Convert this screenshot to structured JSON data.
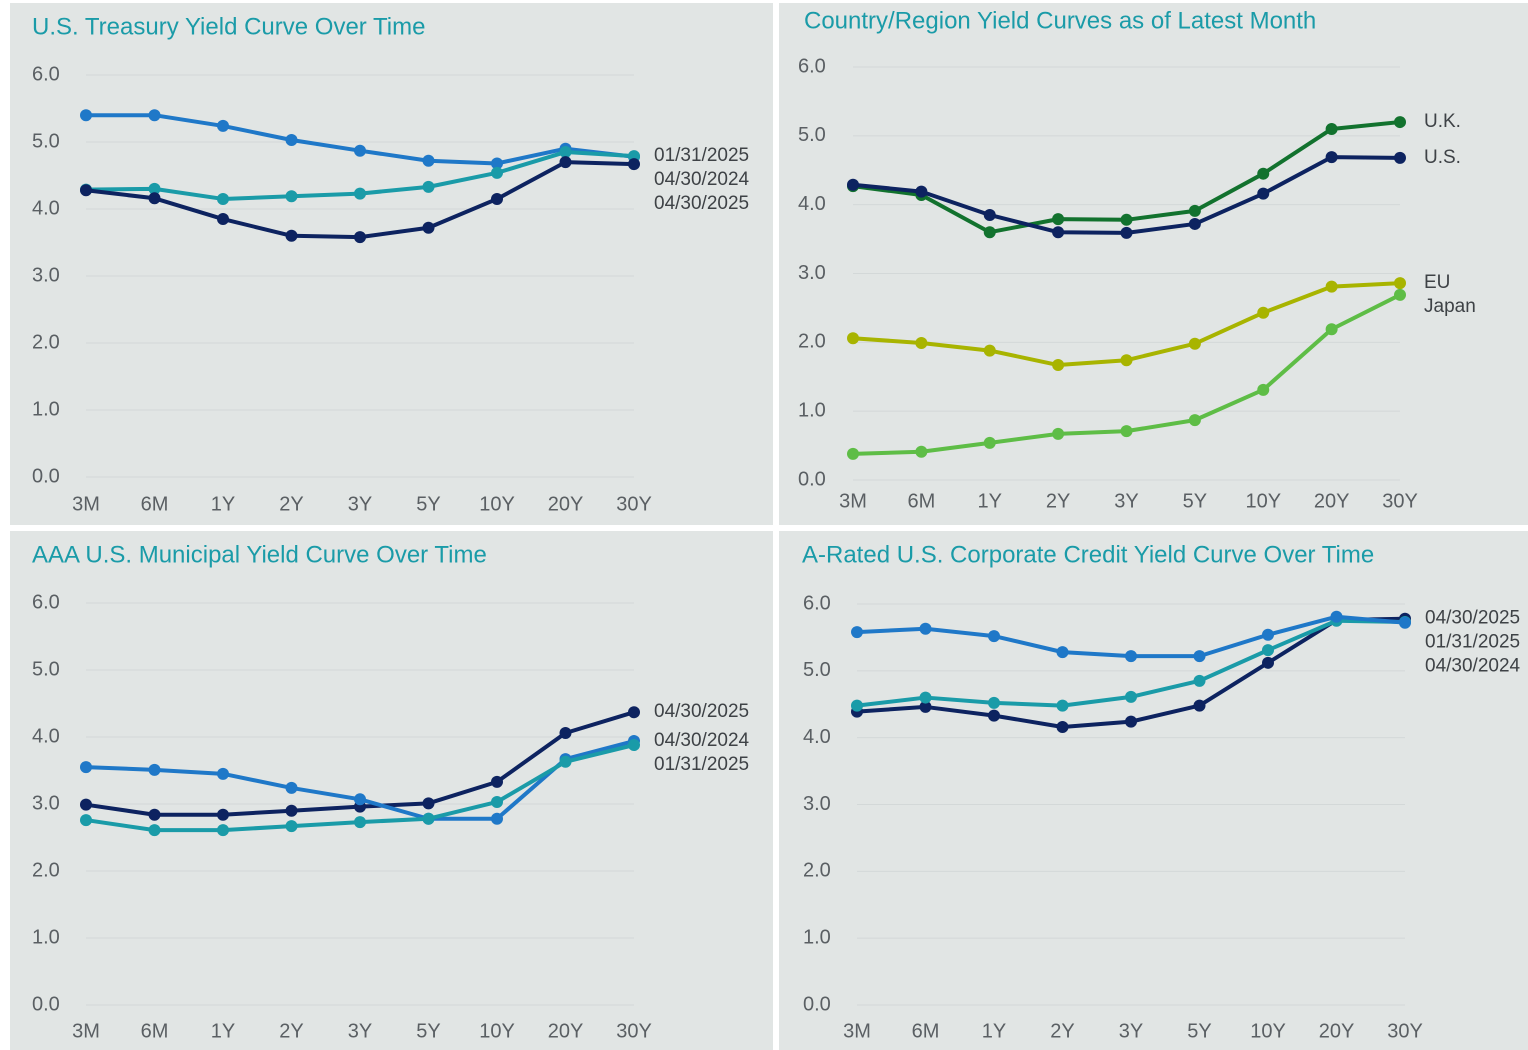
{
  "chart_data": [
    {
      "type": "line",
      "title": "U.S. Treasury Yield Curve Over Time",
      "categories": [
        "3M",
        "6M",
        "1Y",
        "2Y",
        "3Y",
        "5Y",
        "10Y",
        "20Y",
        "30Y"
      ],
      "ylim": [
        0,
        6
      ],
      "yticks": [
        {
          "value": 0,
          "label": "0.0"
        },
        {
          "value": 1,
          "label": "1.0"
        },
        {
          "value": 2,
          "label": "2.0"
        },
        {
          "value": 3,
          "label": "3.0"
        },
        {
          "value": 4,
          "label": "4.0"
        },
        {
          "value": 5,
          "label": "5.0"
        },
        {
          "value": 6,
          "label": "6.0"
        }
      ],
      "grid": true,
      "series": [
        {
          "name": "04/30/2024",
          "color": "#1f78c8",
          "values": [
            5.4,
            5.4,
            5.24,
            5.03,
            4.87,
            4.72,
            4.68,
            4.9,
            4.78
          ]
        },
        {
          "name": "01/31/2025",
          "color": "#1a9ba8",
          "values": [
            4.29,
            4.3,
            4.15,
            4.19,
            4.23,
            4.33,
            4.54,
            4.85,
            4.79
          ]
        },
        {
          "name": "04/30/2025",
          "color": "#0d2360",
          "values": [
            4.28,
            4.16,
            3.85,
            3.6,
            3.58,
            3.72,
            4.15,
            4.7,
            4.67
          ]
        }
      ]
    },
    {
      "type": "line",
      "title": "Country/Region Yield Curves as of Latest Month",
      "categories": [
        "3M",
        "6M",
        "1Y",
        "2Y",
        "3Y",
        "5Y",
        "10Y",
        "20Y",
        "30Y"
      ],
      "ylim": [
        0,
        6
      ],
      "yticks": [
        {
          "value": 0,
          "label": "0.0"
        },
        {
          "value": 1,
          "label": "1.0"
        },
        {
          "value": 2,
          "label": "2.0"
        },
        {
          "value": 3,
          "label": "3.0"
        },
        {
          "value": 4,
          "label": "4.0"
        },
        {
          "value": 5,
          "label": "5.0"
        },
        {
          "value": 6,
          "label": "6.0"
        }
      ],
      "grid": true,
      "series": [
        {
          "name": "U.K.",
          "color": "#12722e",
          "values": [
            4.27,
            4.14,
            3.6,
            3.79,
            3.78,
            3.91,
            4.45,
            5.1,
            5.2
          ]
        },
        {
          "name": "U.S.",
          "color": "#0d2360",
          "values": [
            4.29,
            4.19,
            3.85,
            3.6,
            3.59,
            3.72,
            4.16,
            4.69,
            4.68
          ]
        },
        {
          "name": "EU",
          "color": "#a8b400",
          "values": [
            2.06,
            1.99,
            1.88,
            1.67,
            1.74,
            1.98,
            2.43,
            2.81,
            2.86
          ]
        },
        {
          "name": "Japan",
          "color": "#5ebd46",
          "values": [
            0.38,
            0.41,
            0.54,
            0.67,
            0.71,
            0.87,
            1.31,
            2.19,
            2.69
          ]
        }
      ]
    },
    {
      "type": "line",
      "title": "AAA U.S. Municipal Yield Curve Over Time",
      "categories": [
        "3M",
        "6M",
        "1Y",
        "2Y",
        "3Y",
        "5Y",
        "10Y",
        "20Y",
        "30Y"
      ],
      "ylim": [
        0,
        6
      ],
      "yticks": [
        {
          "value": 0,
          "label": "0.0"
        },
        {
          "value": 1,
          "label": "1.0"
        },
        {
          "value": 2,
          "label": "2.0"
        },
        {
          "value": 3,
          "label": "3.0"
        },
        {
          "value": 4,
          "label": "4.0"
        },
        {
          "value": 5,
          "label": "5.0"
        },
        {
          "value": 6,
          "label": "6.0"
        }
      ],
      "grid": true,
      "series": [
        {
          "name": "04/30/2025",
          "color": "#0d2360",
          "values": [
            2.99,
            2.84,
            2.84,
            2.9,
            2.96,
            3.01,
            3.33,
            4.06,
            4.37
          ]
        },
        {
          "name": "04/30/2024",
          "color": "#1f78c8",
          "values": [
            3.55,
            3.51,
            3.45,
            3.24,
            3.07,
            2.78,
            2.78,
            3.67,
            3.94
          ]
        },
        {
          "name": "01/31/2025",
          "color": "#1a9ba8",
          "values": [
            2.76,
            2.61,
            2.61,
            2.67,
            2.73,
            2.78,
            3.03,
            3.63,
            3.88
          ]
        }
      ]
    },
    {
      "type": "line",
      "title": "A-Rated U.S. Corporate Credit Yield Curve Over Time",
      "categories": [
        "3M",
        "6M",
        "1Y",
        "2Y",
        "3Y",
        "5Y",
        "10Y",
        "20Y",
        "30Y"
      ],
      "ylim": [
        0,
        6
      ],
      "yticks": [
        {
          "value": 0,
          "label": "0.0"
        },
        {
          "value": 1,
          "label": "1.0"
        },
        {
          "value": 2,
          "label": "2.0"
        },
        {
          "value": 3,
          "label": "3.0"
        },
        {
          "value": 4,
          "label": "4.0"
        },
        {
          "value": 5,
          "label": "5.0"
        },
        {
          "value": 6,
          "label": "6.0"
        }
      ],
      "grid": true,
      "series": [
        {
          "name": "04/30/2025",
          "color": "#0d2360",
          "values": [
            4.39,
            4.46,
            4.33,
            4.16,
            4.24,
            4.48,
            5.12,
            5.76,
            5.78
          ]
        },
        {
          "name": "01/31/2025",
          "color": "#1a9ba8",
          "values": [
            4.48,
            4.6,
            4.52,
            4.48,
            4.61,
            4.85,
            5.31,
            5.75,
            5.73
          ]
        },
        {
          "name": "04/30/2024",
          "color": "#1f78c8",
          "values": [
            5.58,
            5.63,
            5.52,
            5.28,
            5.22,
            5.22,
            5.54,
            5.81,
            5.72
          ]
        }
      ]
    }
  ]
}
